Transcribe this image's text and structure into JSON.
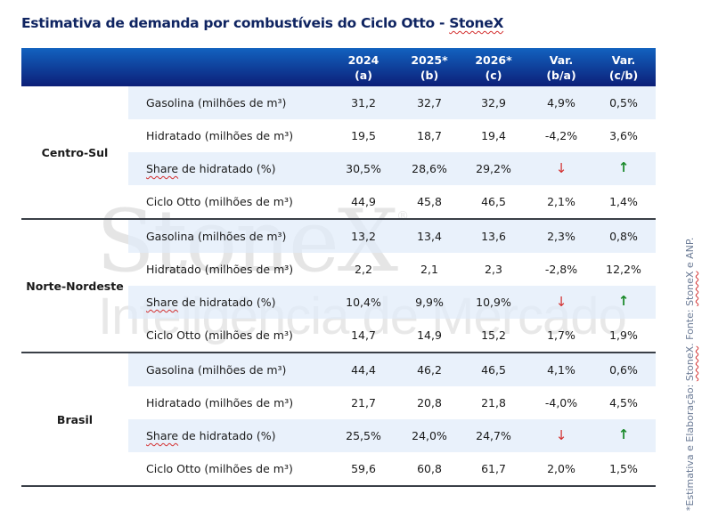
{
  "title": {
    "text": "Estimativa de demanda por combustíveis do Ciclo Otto - ",
    "brand": "StoneX"
  },
  "header": {
    "columns": [
      {
        "line1": "2024",
        "line2": "(a)"
      },
      {
        "line1": "2025*",
        "line2": "(b)"
      },
      {
        "line1": "2026*",
        "line2": "(c)"
      },
      {
        "line1": "Var.",
        "line2": "(b/a)"
      },
      {
        "line1": "Var.",
        "line2": "(c/b)"
      }
    ]
  },
  "groups": [
    {
      "region": "Centro-Sul",
      "rows": [
        {
          "label": "Gasolina (milhões de m³)",
          "values": [
            "31,2",
            "32,7",
            "32,9",
            "4,9%",
            "0,5%"
          ]
        },
        {
          "label": "Hidratado (milhões de m³)",
          "values": [
            "19,5",
            "18,7",
            "19,4",
            "-4,2%",
            "3,6%"
          ]
        },
        {
          "label_sp": "Share",
          "label": " de hidratado (%)",
          "values": [
            "30,5%",
            "28,6%",
            "29,2%"
          ],
          "arrows": [
            "↓",
            "↑"
          ]
        },
        {
          "label": "Ciclo Otto (milhões de m³)",
          "values": [
            "44,9",
            "45,8",
            "46,5",
            "2,1%",
            "1,4%"
          ]
        }
      ]
    },
    {
      "region": "Norte-Nordeste",
      "rows": [
        {
          "label": "Gasolina (milhões de m³)",
          "values": [
            "13,2",
            "13,4",
            "13,6",
            "2,3%",
            "0,8%"
          ]
        },
        {
          "label": "Hidratado (milhões de m³)",
          "values": [
            "2,2",
            "2,1",
            "2,3",
            "-2,8%",
            "12,2%"
          ]
        },
        {
          "label_sp": "Share",
          "label": " de hidratado (%)",
          "values": [
            "10,4%",
            "9,9%",
            "10,9%"
          ],
          "arrows": [
            "↓",
            "↑"
          ]
        },
        {
          "label": "Ciclo Otto (milhões de m³)",
          "values": [
            "14,7",
            "14,9",
            "15,2",
            "1,7%",
            "1,9%"
          ]
        }
      ]
    },
    {
      "region": "Brasil",
      "rows": [
        {
          "label": "Gasolina (milhões de m³)",
          "values": [
            "44,4",
            "46,2",
            "46,5",
            "4,1%",
            "0,6%"
          ]
        },
        {
          "label": "Hidratado (milhões de m³)",
          "values": [
            "21,7",
            "20,8",
            "21,8",
            "-4,0%",
            "4,5%"
          ]
        },
        {
          "label_sp": "Share",
          "label": " de hidratado (%)",
          "values": [
            "25,5%",
            "24,0%",
            "24,7%"
          ],
          "arrows": [
            "↓",
            "↑"
          ]
        },
        {
          "label": "Ciclo Otto (milhões de m³)",
          "values": [
            "59,6",
            "60,8",
            "61,7",
            "2,0%",
            "1,5%"
          ]
        }
      ]
    }
  ],
  "watermark": {
    "line1": "StoneX",
    "reg": "®",
    "line2": "Inteligência de Mercado"
  },
  "source": {
    "part1": "*Estimativa e Elaboração: ",
    "brand1": "StoneX",
    "part2": ". Fonte: ",
    "brand2": "StoneX",
    "part3": " e  ANP."
  },
  "colors": {
    "header_top": "#1262bf",
    "header_bottom": "#0c1f78",
    "title": "#0f2461",
    "down": "#d32f2f",
    "up": "#1b8a2a"
  }
}
